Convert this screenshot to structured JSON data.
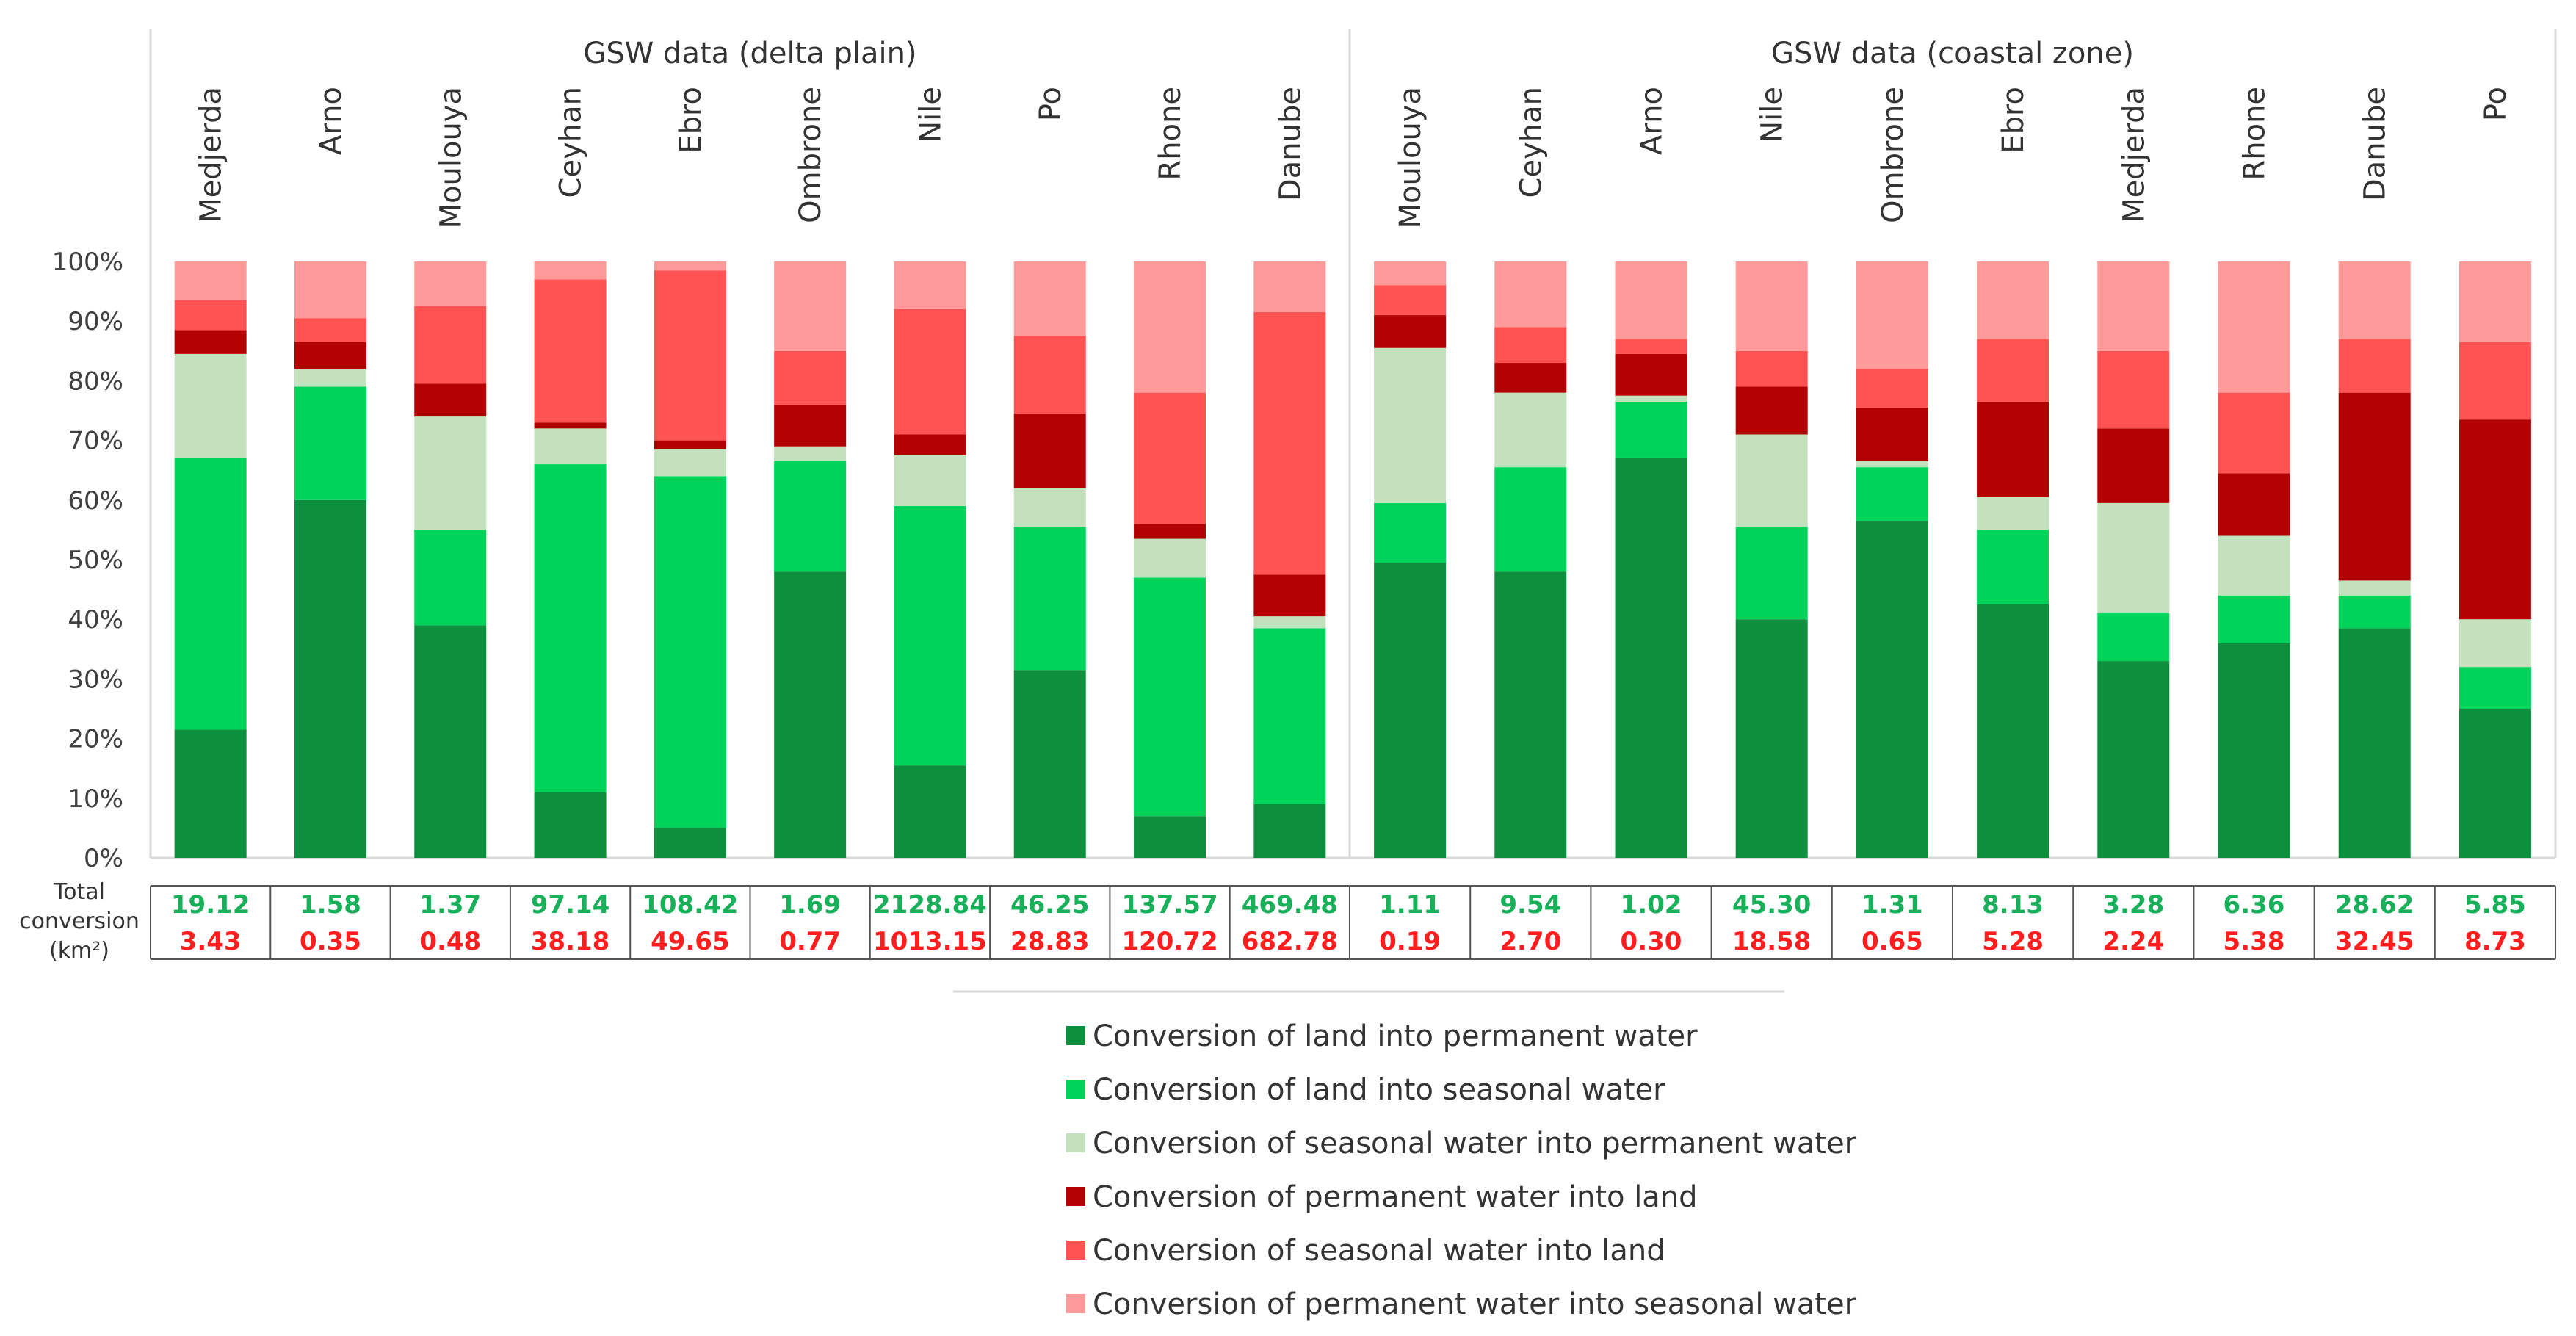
{
  "chart_data": {
    "type": "bar",
    "stacked": "percent",
    "ylim": [
      0,
      100
    ],
    "yticks": [
      "0%",
      "10%",
      "20%",
      "30%",
      "40%",
      "50%",
      "60%",
      "70%",
      "80%",
      "90%",
      "100%"
    ],
    "total_label_lines": [
      "Total",
      "conversion",
      "(km²)"
    ],
    "colors": [
      "#0d8f3e",
      "#00d35a",
      "#c4e1bd",
      "#b30000",
      "#ff5252",
      "#ff9a9a"
    ],
    "legend": [
      "Conversion of land into permanent water",
      "Conversion of land into seasonal water",
      "Conversion of seasonal water into permanent water",
      "Conversion of permanent water into land",
      "Conversion of seasonal water into land",
      "Conversion of permanent water into seasonal water"
    ],
    "panels": [
      {
        "title": "GSW data (delta plain)",
        "categories": [
          "Medjerda",
          "Arno",
          "Moulouya",
          "Ceyhan",
          "Ebro",
          "Ombrone",
          "Nile",
          "Po",
          "Rhone",
          "Danube"
        ],
        "series": [
          {
            "name": "Conversion of land into permanent water",
            "values": [
              21.5,
              60,
              39,
              11,
              5,
              48,
              15.5,
              31.5,
              7,
              9
            ]
          },
          {
            "name": "Conversion of land into seasonal water",
            "values": [
              45.5,
              19,
              16,
              55,
              59,
              18.5,
              43.5,
              24,
              40,
              29.5
            ]
          },
          {
            "name": "Conversion of seasonal water into permanent water",
            "values": [
              17.5,
              3,
              19,
              6,
              4.5,
              2.5,
              8.5,
              6.5,
              6.5,
              2
            ]
          },
          {
            "name": "Conversion of permanent water into land",
            "values": [
              4,
              4.5,
              5.5,
              1,
              1.5,
              7,
              3.5,
              12.5,
              2.5,
              7
            ]
          },
          {
            "name": "Conversion of seasonal water into land",
            "values": [
              5,
              4,
              13,
              24,
              28.5,
              9,
              21,
              13,
              22,
              44
            ]
          },
          {
            "name": "Conversion of permanent water into seasonal water",
            "values": [
              6.5,
              9.5,
              7.5,
              3,
              1.5,
              15,
              8,
              12.5,
              22,
              8.5
            ]
          }
        ],
        "gain_totals": [
          "19.12",
          "1.58",
          "1.37",
          "97.14",
          "108.42",
          "1.69",
          "2128.84",
          "46.25",
          "137.57",
          "469.48"
        ],
        "loss_totals": [
          "3.43",
          "0.35",
          "0.48",
          "38.18",
          "49.65",
          "0.77",
          "1013.15",
          "28.83",
          "120.72",
          "682.78"
        ]
      },
      {
        "title": "GSW data (coastal zone)",
        "categories": [
          "Moulouya",
          "Ceyhan",
          "Arno",
          "Nile",
          "Ombrone",
          "Ebro",
          "Medjerda",
          "Rhone",
          "Danube",
          "Po"
        ],
        "series": [
          {
            "name": "Conversion of land into permanent water",
            "values": [
              49.5,
              48,
              67,
              40,
              56.5,
              42.5,
              33,
              36,
              38.5,
              25
            ]
          },
          {
            "name": "Conversion of land into seasonal water",
            "values": [
              10,
              17.5,
              9.5,
              15.5,
              9,
              12.5,
              8,
              8,
              5.5,
              7
            ]
          },
          {
            "name": "Conversion of seasonal water into permanent water",
            "values": [
              26,
              12.5,
              1,
              15.5,
              1,
              5.5,
              18.5,
              10,
              2.5,
              8
            ]
          },
          {
            "name": "Conversion of permanent water into land",
            "values": [
              5.5,
              5,
              7,
              8,
              9,
              16,
              12.5,
              10.5,
              31.5,
              33.5
            ]
          },
          {
            "name": "Conversion of seasonal water into land",
            "values": [
              5,
              6,
              2.5,
              6,
              6.5,
              10.5,
              13,
              13.5,
              9,
              13
            ]
          },
          {
            "name": "Conversion of permanent water into seasonal water",
            "values": [
              4,
              11,
              13,
              15,
              18,
              13,
              15,
              22,
              13,
              13.5
            ]
          }
        ],
        "gain_totals": [
          "1.11",
          "9.54",
          "1.02",
          "45.30",
          "1.31",
          "8.13",
          "3.28",
          "6.36",
          "28.62",
          "5.85"
        ],
        "loss_totals": [
          "0.19",
          "2.70",
          "0.30",
          "18.58",
          "0.65",
          "5.28",
          "2.24",
          "5.38",
          "32.45",
          "8.73"
        ]
      }
    ]
  }
}
